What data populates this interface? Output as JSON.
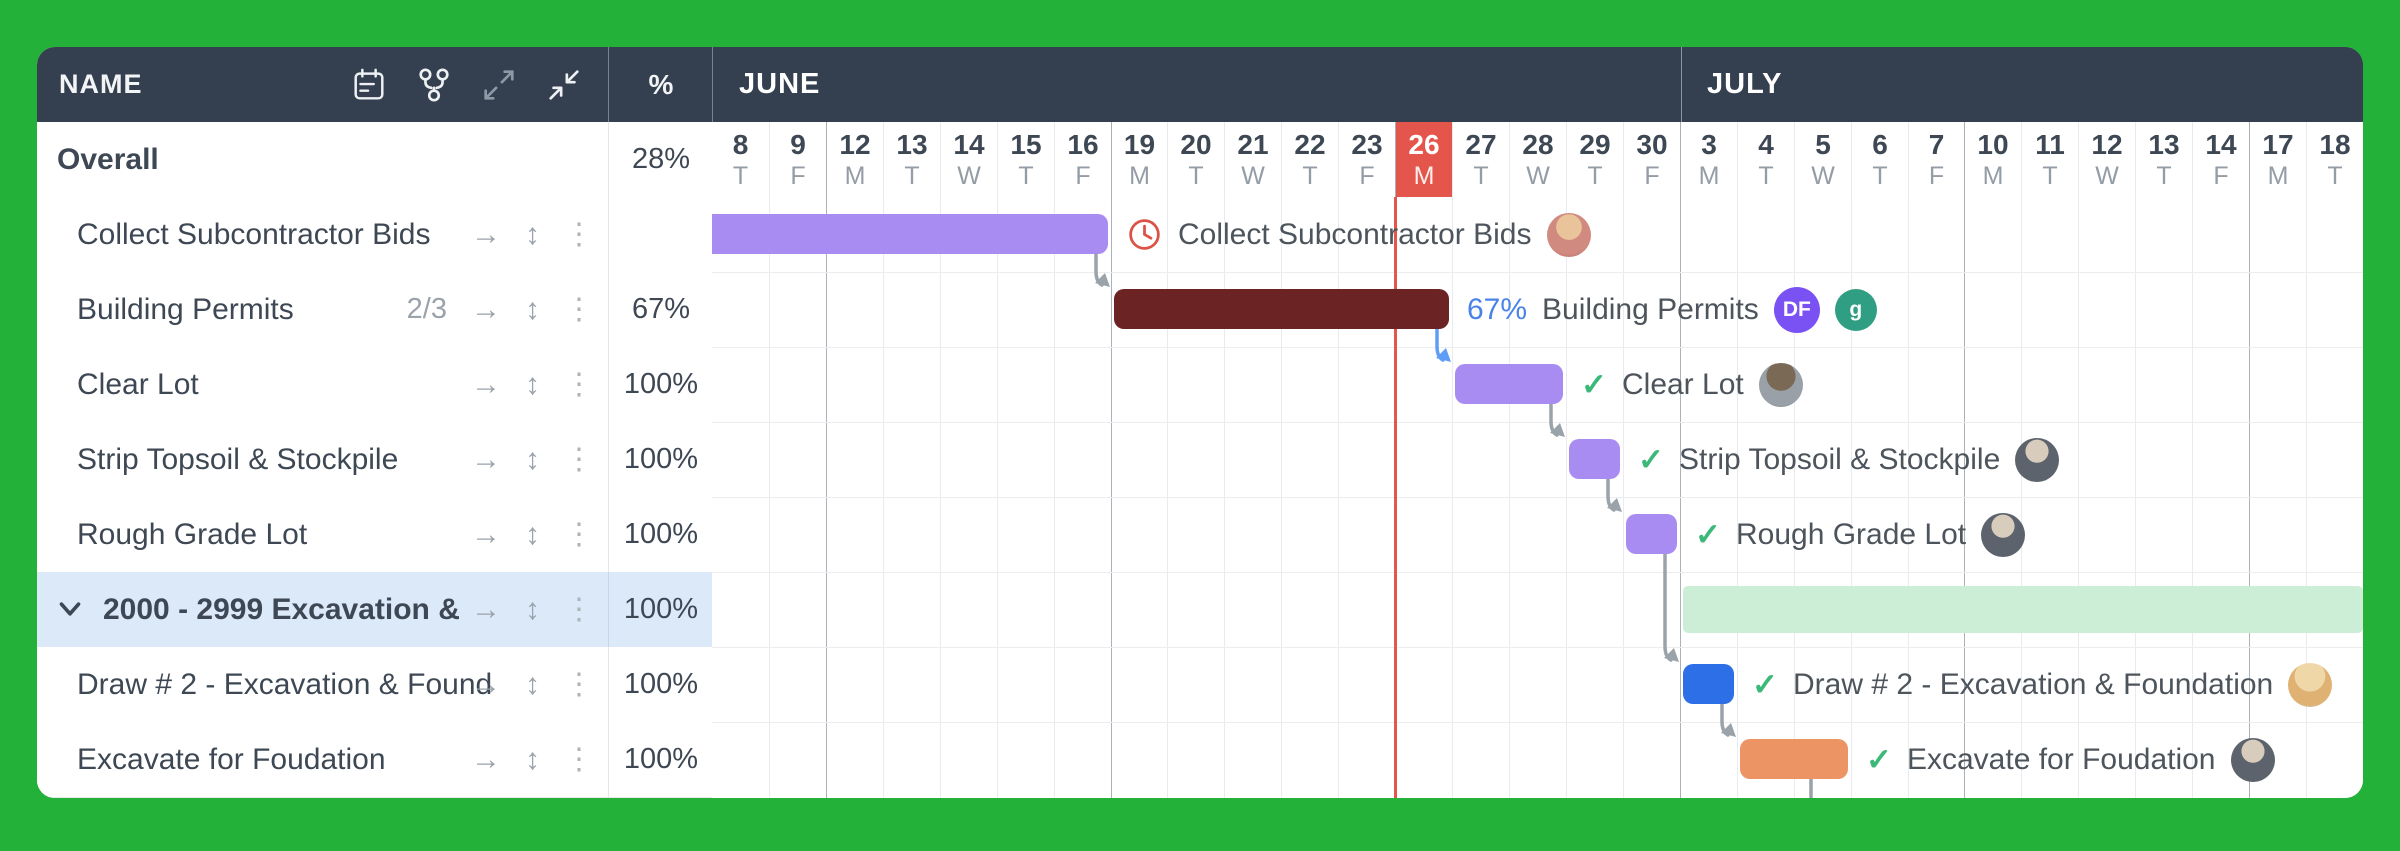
{
  "colors": {
    "background": "#23b13a",
    "header": "#343f4f",
    "today_red": "#e4564b",
    "purple_bar": "#a88cf2",
    "maroon_bar": "#6b2323",
    "group_bar": "#cdeed6",
    "blue_bar": "#2d6fe6",
    "orange_bar": "#ec9464",
    "selected_row": "#dce9f8",
    "dep_gray": "#9aa2aa",
    "dep_blue": "#5f9df6",
    "percent_blue": "#4a82e8",
    "check_green": "#3cb878",
    "avatar_df": "#7a52f4",
    "avatar_g": "#2f9e82"
  },
  "glyphs": {
    "forward_arrow": "→",
    "resize_arrow": "↕",
    "kebab": "⋮",
    "check": "✓"
  },
  "left_panel": {
    "header": {
      "name_label": "NAME",
      "percent_label": "%"
    },
    "rows": [
      {
        "name": "Overall",
        "percent": "28%",
        "bold": true,
        "level": 0,
        "icons": false
      },
      {
        "name": "Collect Subcontractor Bids",
        "percent": "",
        "level": 1,
        "icons": true
      },
      {
        "name": "Building Permits",
        "meta": "2/3",
        "percent": "67%",
        "level": 1,
        "icons": true
      },
      {
        "name": "Clear Lot",
        "percent": "100%",
        "level": 1,
        "icons": true
      },
      {
        "name": "Strip Topsoil & Stockpile",
        "percent": "100%",
        "level": 1,
        "icons": true
      },
      {
        "name": "Rough Grade Lot",
        "percent": "100%",
        "level": 1,
        "icons": true
      },
      {
        "name": "2000 - 2999 Excavation &",
        "percent": "100%",
        "level": 1,
        "icons": true,
        "selected": true,
        "bold": true,
        "chevron": true
      },
      {
        "name": "Draw # 2 - Excavation & Found",
        "percent": "100%",
        "level": 1,
        "icons": true
      },
      {
        "name": "Excavate for Foudation",
        "percent": "100%",
        "level": 1,
        "icons": true
      }
    ]
  },
  "timeline": {
    "months": [
      {
        "label": "JUNE",
        "start_index": 0
      },
      {
        "label": "JULY",
        "start_index": 17
      }
    ],
    "days": [
      {
        "num": "8",
        "dow": "T"
      },
      {
        "num": "9",
        "dow": "F"
      },
      {
        "num": "12",
        "dow": "M"
      },
      {
        "num": "13",
        "dow": "T"
      },
      {
        "num": "14",
        "dow": "W"
      },
      {
        "num": "15",
        "dow": "T"
      },
      {
        "num": "16",
        "dow": "F"
      },
      {
        "num": "19",
        "dow": "M"
      },
      {
        "num": "20",
        "dow": "T"
      },
      {
        "num": "21",
        "dow": "W"
      },
      {
        "num": "22",
        "dow": "T"
      },
      {
        "num": "23",
        "dow": "F"
      },
      {
        "num": "26",
        "dow": "M",
        "today": true
      },
      {
        "num": "27",
        "dow": "T"
      },
      {
        "num": "28",
        "dow": "W"
      },
      {
        "num": "29",
        "dow": "T"
      },
      {
        "num": "30",
        "dow": "F"
      },
      {
        "num": "3",
        "dow": "M"
      },
      {
        "num": "4",
        "dow": "T"
      },
      {
        "num": "5",
        "dow": "W"
      },
      {
        "num": "6",
        "dow": "T"
      },
      {
        "num": "7",
        "dow": "F"
      },
      {
        "num": "10",
        "dow": "M"
      },
      {
        "num": "11",
        "dow": "T"
      },
      {
        "num": "12",
        "dow": "W"
      },
      {
        "num": "13",
        "dow": "T"
      },
      {
        "num": "14",
        "dow": "F"
      },
      {
        "num": "17",
        "dow": "M"
      },
      {
        "num": "18",
        "dow": "T"
      }
    ],
    "week_start_indices": [
      2,
      7,
      12,
      17,
      22,
      27
    ],
    "today_boundary_index": 12
  },
  "chart": {
    "bars": [
      {
        "row": 0,
        "start": 0,
        "end": 7,
        "color_key": "purple_bar",
        "clip_left": true,
        "label": {
          "icon": "clock-icon",
          "text": "Collect Subcontractor Bids",
          "avatars": [
            {
              "type": "photo",
              "key": "man-pink"
            }
          ]
        }
      },
      {
        "row": 1,
        "start": 7,
        "end": 13,
        "color_key": "maroon_bar",
        "label": {
          "prefix": "67%",
          "text": "Building Permits",
          "avatars": [
            {
              "type": "initials",
              "text": "DF",
              "color_key": "avatar_df",
              "size": 46
            },
            {
              "type": "initials",
              "text": "g",
              "color_key": "avatar_g",
              "size": 42
            }
          ]
        }
      },
      {
        "row": 2,
        "start": 13,
        "end": 15,
        "color_key": "purple_bar",
        "label": {
          "icon": "check-icon",
          "text": "Clear Lot",
          "avatars": [
            {
              "type": "photo",
              "key": "man-sunglasses"
            }
          ]
        }
      },
      {
        "row": 3,
        "start": 15,
        "end": 16,
        "color_key": "purple_bar",
        "label": {
          "icon": "check-icon",
          "text": "Strip Topsoil & Stockpile",
          "avatars": [
            {
              "type": "photo",
              "key": "man-suit"
            }
          ]
        }
      },
      {
        "row": 4,
        "start": 16,
        "end": 17,
        "color_key": "purple_bar",
        "label": {
          "icon": "check-icon",
          "text": "Rough Grade Lot",
          "avatars": [
            {
              "type": "photo",
              "key": "man-suit"
            }
          ]
        }
      },
      {
        "row": 5,
        "start": 17,
        "end": 29,
        "color_key": "group_bar",
        "group": true
      },
      {
        "row": 6,
        "start": 17,
        "end": 18,
        "color_key": "blue_bar",
        "label": {
          "icon": "check-icon",
          "text": "Draw # 2 - Excavation & Foundation",
          "avatars": [
            {
              "type": "photo",
              "key": "woman-blonde"
            }
          ]
        }
      },
      {
        "row": 7,
        "start": 18,
        "end": 20,
        "color_key": "orange_bar",
        "label": {
          "icon": "check-icon",
          "text": "Excavate for Foudation",
          "avatars": [
            {
              "type": "photo",
              "key": "man-suit"
            }
          ]
        }
      }
    ],
    "dependencies": [
      {
        "from": 0,
        "to": 1,
        "color_key": "dep_gray"
      },
      {
        "from": 1,
        "to": 2,
        "color_key": "dep_blue"
      },
      {
        "from": 2,
        "to": 3,
        "color_key": "dep_gray"
      },
      {
        "from": 3,
        "to": 4,
        "color_key": "dep_gray"
      },
      {
        "from": 4,
        "to": 6,
        "color_key": "dep_gray"
      },
      {
        "from": 6,
        "to": 7,
        "color_key": "dep_gray"
      },
      {
        "from": 7,
        "to": null,
        "color_key": "dep_gray"
      }
    ]
  }
}
